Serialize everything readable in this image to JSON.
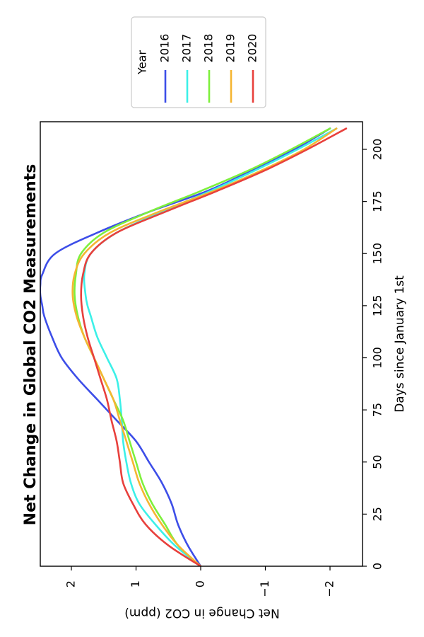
{
  "chart_data": {
    "type": "line",
    "title": "Net Change in Global CO2 Measurements",
    "xlabel": "Days since January 1st",
    "ylabel": "Net Change in CO2 (ppm)",
    "xlim": [
      0,
      212
    ],
    "ylim": [
      -2.5,
      2.5
    ],
    "xticks": [
      0,
      25,
      50,
      75,
      100,
      125,
      150,
      175,
      200
    ],
    "yticks": [
      2,
      1,
      0,
      -1,
      -2
    ],
    "ytick_labels": [
      "2",
      "1",
      "0",
      "−1",
      "−2"
    ],
    "grid": false,
    "orientation": "rotated 90° clockwise",
    "legend": {
      "title": "Year",
      "placement": "top-right"
    },
    "series": [
      {
        "name": "2016",
        "color": "#3d4ee8",
        "x": [
          0,
          10,
          20,
          30,
          40,
          50,
          60,
          70,
          80,
          90,
          100,
          110,
          120,
          125,
          130,
          135,
          140,
          150,
          160,
          170,
          180,
          190,
          200,
          210
        ],
        "y": [
          0,
          0.2,
          0.35,
          0.45,
          0.6,
          0.8,
          1.0,
          1.3,
          1.6,
          1.9,
          2.15,
          2.3,
          2.42,
          2.45,
          2.48,
          2.48,
          2.45,
          2.25,
          1.6,
          0.8,
          -0.1,
          -0.8,
          -1.45,
          -2.0
        ]
      },
      {
        "name": "2017",
        "color": "#3cf0e8",
        "x": [
          0,
          10,
          20,
          30,
          40,
          50,
          60,
          70,
          80,
          90,
          100,
          110,
          120,
          125,
          130,
          140,
          150,
          160,
          170,
          180,
          190,
          200,
          210
        ],
        "y": [
          0,
          0.4,
          0.7,
          0.95,
          1.08,
          1.15,
          1.2,
          1.22,
          1.25,
          1.3,
          1.45,
          1.6,
          1.7,
          1.75,
          1.78,
          1.8,
          1.7,
          1.3,
          0.6,
          -0.15,
          -0.85,
          -1.5,
          -2.1
        ]
      },
      {
        "name": "2018",
        "color": "#7ef03c",
        "x": [
          0,
          10,
          20,
          30,
          40,
          50,
          60,
          70,
          80,
          90,
          100,
          110,
          120,
          130,
          140,
          150,
          160,
          170,
          180,
          190,
          200,
          210
        ],
        "y": [
          0,
          0.35,
          0.55,
          0.75,
          0.9,
          1.0,
          1.1,
          1.2,
          1.35,
          1.5,
          1.65,
          1.8,
          1.9,
          1.95,
          1.93,
          1.85,
          1.5,
          0.8,
          0.0,
          -0.75,
          -1.4,
          -2.0
        ]
      },
      {
        "name": "2019",
        "color": "#f5b532",
        "x": [
          0,
          10,
          20,
          30,
          40,
          50,
          60,
          70,
          80,
          90,
          100,
          110,
          120,
          130,
          140,
          150,
          160,
          170,
          180,
          190,
          200,
          210
        ],
        "y": [
          0,
          0.35,
          0.6,
          0.8,
          0.95,
          1.05,
          1.15,
          1.25,
          1.35,
          1.5,
          1.65,
          1.8,
          1.92,
          1.98,
          1.95,
          1.8,
          1.4,
          0.65,
          -0.2,
          -0.95,
          -1.6,
          -2.1
        ]
      },
      {
        "name": "2020",
        "color": "#e8403c",
        "x": [
          0,
          10,
          20,
          30,
          40,
          50,
          60,
          70,
          80,
          90,
          100,
          110,
          120,
          130,
          140,
          150,
          160,
          170,
          180,
          190,
          200,
          210
        ],
        "y": [
          0,
          0.5,
          0.85,
          1.05,
          1.2,
          1.25,
          1.3,
          1.38,
          1.45,
          1.55,
          1.65,
          1.75,
          1.82,
          1.85,
          1.82,
          1.7,
          1.3,
          0.55,
          -0.25,
          -1.0,
          -1.65,
          -2.25
        ]
      }
    ]
  }
}
